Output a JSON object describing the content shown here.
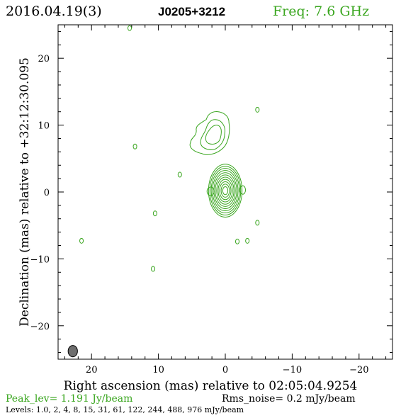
{
  "header": {
    "date": "2016.04.19(3)",
    "source": "J0205+3212",
    "freq": "Freq: 7.6 GHz"
  },
  "footer": {
    "peak": "Peak_lev=  1.191 Jy/beam",
    "rms": "Rms_noise=  0.2 mJy/beam",
    "levels": "Levels: 1.0,   2,   4,   8,  15,  31,  61, 122, 244, 488, 976 mJy/beam"
  },
  "colors": {
    "contour": "#3aa61f",
    "freq": "#3aa61f",
    "peak": "#3aa61f",
    "beam": "#6e6e6e",
    "axes": "#000000"
  },
  "chart_data": {
    "type": "contour",
    "xlabel": "Right ascension (mas) relative to 02:05:04.9254",
    "ylabel": "Declination (mas) relative to +32:12:30.095",
    "xlim": [
      25,
      -25
    ],
    "ylim": [
      -25,
      25
    ],
    "x_ticks": [
      20,
      10,
      0,
      -10,
      -20
    ],
    "y_ticks": [
      20,
      10,
      0,
      -10,
      -20
    ],
    "x_tick_labels": [
      "20",
      "10",
      "0",
      "−10",
      "−20"
    ],
    "y_tick_labels": [
      "20",
      "10",
      "0",
      "−10",
      "−20"
    ],
    "levels_mJy": [
      1.0,
      2,
      4,
      8,
      15,
      31,
      61,
      122,
      244,
      488,
      976
    ],
    "beam": {
      "x": 22.8,
      "y": -23.8,
      "rx": 0.7,
      "ry": 0.85
    },
    "core": {
      "x": 0.0,
      "y": 0.2,
      "n_contours": 11,
      "max_rx": 2.4,
      "max_ry": 3.8
    },
    "jet_components": [
      {
        "x": 2.0,
        "y": 8.5,
        "n_contours": 3
      }
    ],
    "isolated_contours": [
      {
        "x": 14.3,
        "y": 24.5
      },
      {
        "x": 13.5,
        "y": 6.8
      },
      {
        "x": 6.8,
        "y": 2.6
      },
      {
        "x": 10.5,
        "y": -3.2
      },
      {
        "x": 21.5,
        "y": -7.3
      },
      {
        "x": 10.8,
        "y": -11.5
      },
      {
        "x": -4.8,
        "y": -4.6
      },
      {
        "x": -3.3,
        "y": -7.3
      },
      {
        "x": -1.8,
        "y": -7.4
      },
      {
        "x": -4.8,
        "y": 12.3
      }
    ]
  }
}
